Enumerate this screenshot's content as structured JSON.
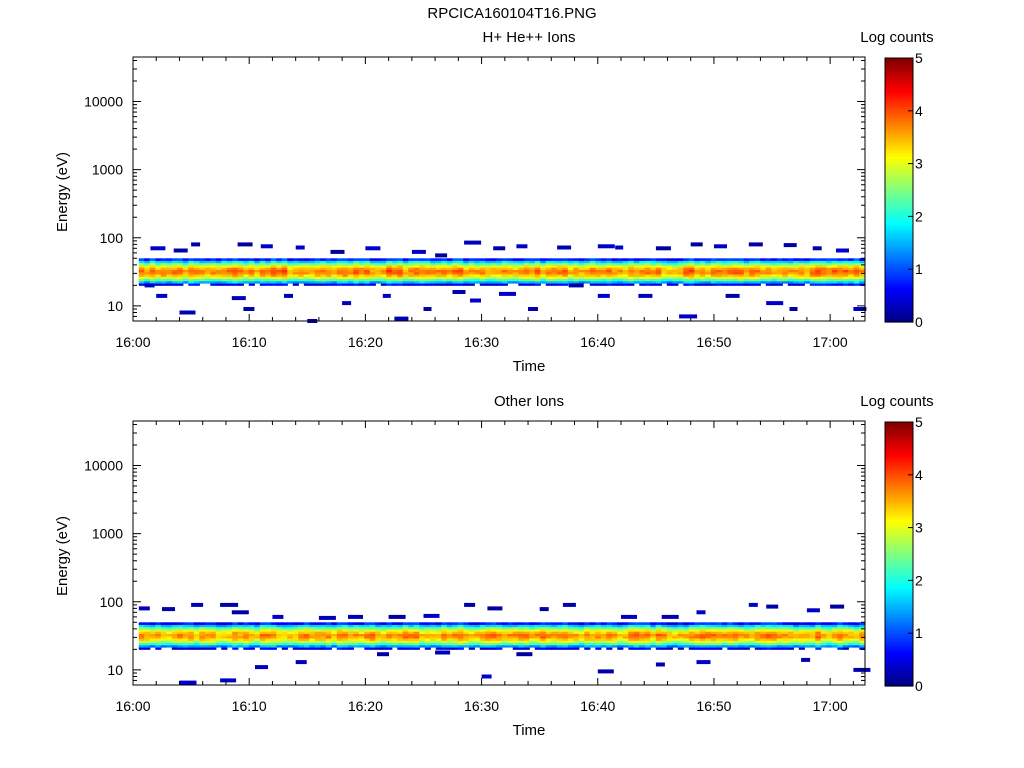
{
  "figure_title": "RPCICA160104T16.PNG",
  "colormap": [
    "#00007f",
    "#0000ff",
    "#007fff",
    "#00ffff",
    "#7fff7f",
    "#ffff00",
    "#ff7f00",
    "#ff0000",
    "#7f0000"
  ],
  "chart_data": [
    {
      "type": "heatmap",
      "title": "H+ He++ Ions",
      "xlabel": "Time",
      "ylabel": "Energy (eV)",
      "x_ticks": [
        "16:00",
        "16:10",
        "16:20",
        "16:30",
        "16:40",
        "16:50",
        "17:00"
      ],
      "x_range_minutes": [
        0,
        63
      ],
      "y_scale": "log",
      "y_ticks": [
        "10",
        "100",
        "1000",
        "10000"
      ],
      "y_range": [
        6,
        45000
      ],
      "colorbar": {
        "label": "Log counts",
        "range": [
          0,
          5
        ],
        "ticks": [
          "0",
          "1",
          "2",
          "3",
          "4",
          "5"
        ]
      },
      "band": {
        "center_eV": 32,
        "peak_log_counts": 3.8,
        "energy_range_eV": [
          20,
          50
        ]
      },
      "sparse_pixels": [
        [
          1.5,
          70
        ],
        [
          3.5,
          65
        ],
        [
          5,
          80
        ],
        [
          9,
          80
        ],
        [
          11,
          75
        ],
        [
          14,
          72
        ],
        [
          17,
          62
        ],
        [
          20,
          70
        ],
        [
          24,
          62
        ],
        [
          26,
          55
        ],
        [
          28.5,
          85
        ],
        [
          31,
          70
        ],
        [
          33,
          75
        ],
        [
          36.5,
          72
        ],
        [
          40,
          75
        ],
        [
          41.5,
          72
        ],
        [
          45,
          70
        ],
        [
          48,
          80
        ],
        [
          50,
          75
        ],
        [
          53,
          80
        ],
        [
          56,
          78
        ],
        [
          58.5,
          70
        ],
        [
          60.5,
          65
        ],
        [
          1,
          20
        ],
        [
          2,
          14
        ],
        [
          4,
          8
        ],
        [
          8.5,
          13
        ],
        [
          9.5,
          9
        ],
        [
          13,
          14
        ],
        [
          15,
          6
        ],
        [
          18,
          11
        ],
        [
          21.5,
          14
        ],
        [
          22.5,
          6.5
        ],
        [
          25,
          9
        ],
        [
          27.5,
          16
        ],
        [
          29,
          12
        ],
        [
          31.5,
          15
        ],
        [
          34,
          9
        ],
        [
          37.5,
          20
        ],
        [
          40,
          14
        ],
        [
          43.5,
          14
        ],
        [
          47,
          7
        ],
        [
          51,
          14
        ],
        [
          54.5,
          11
        ],
        [
          56.5,
          9
        ],
        [
          62,
          9
        ]
      ]
    },
    {
      "type": "heatmap",
      "title": "Other Ions",
      "xlabel": "Time",
      "ylabel": "Energy (eV)",
      "x_ticks": [
        "16:00",
        "16:10",
        "16:20",
        "16:30",
        "16:40",
        "16:50",
        "17:00"
      ],
      "x_range_minutes": [
        0,
        63
      ],
      "y_scale": "log",
      "y_ticks": [
        "10",
        "100",
        "1000",
        "10000"
      ],
      "y_range": [
        6,
        45000
      ],
      "colorbar": {
        "label": "Log counts",
        "range": [
          0,
          5
        ],
        "ticks": [
          "0",
          "1",
          "2",
          "3",
          "4",
          "5"
        ]
      },
      "band": {
        "center_eV": 32,
        "peak_log_counts": 3.7,
        "energy_range_eV": [
          20,
          50
        ]
      },
      "sparse_pixels": [
        [
          0.5,
          80
        ],
        [
          2.5,
          78
        ],
        [
          5,
          90
        ],
        [
          7.5,
          90
        ],
        [
          8.5,
          70
        ],
        [
          12,
          60
        ],
        [
          16,
          58
        ],
        [
          18.5,
          60
        ],
        [
          22,
          60
        ],
        [
          25,
          62
        ],
        [
          28.5,
          90
        ],
        [
          30.5,
          80
        ],
        [
          35,
          78
        ],
        [
          37,
          90
        ],
        [
          42,
          60
        ],
        [
          45.5,
          60
        ],
        [
          48.5,
          70
        ],
        [
          53,
          90
        ],
        [
          54.5,
          85
        ],
        [
          58,
          75
        ],
        [
          60,
          85
        ],
        [
          4,
          6.5
        ],
        [
          7.5,
          7
        ],
        [
          10.5,
          11
        ],
        [
          14,
          13
        ],
        [
          21,
          17
        ],
        [
          26,
          18
        ],
        [
          30,
          8
        ],
        [
          33,
          17
        ],
        [
          40,
          9.5
        ],
        [
          45,
          12
        ],
        [
          48.5,
          13
        ],
        [
          57.5,
          14
        ],
        [
          62,
          10
        ]
      ]
    }
  ]
}
